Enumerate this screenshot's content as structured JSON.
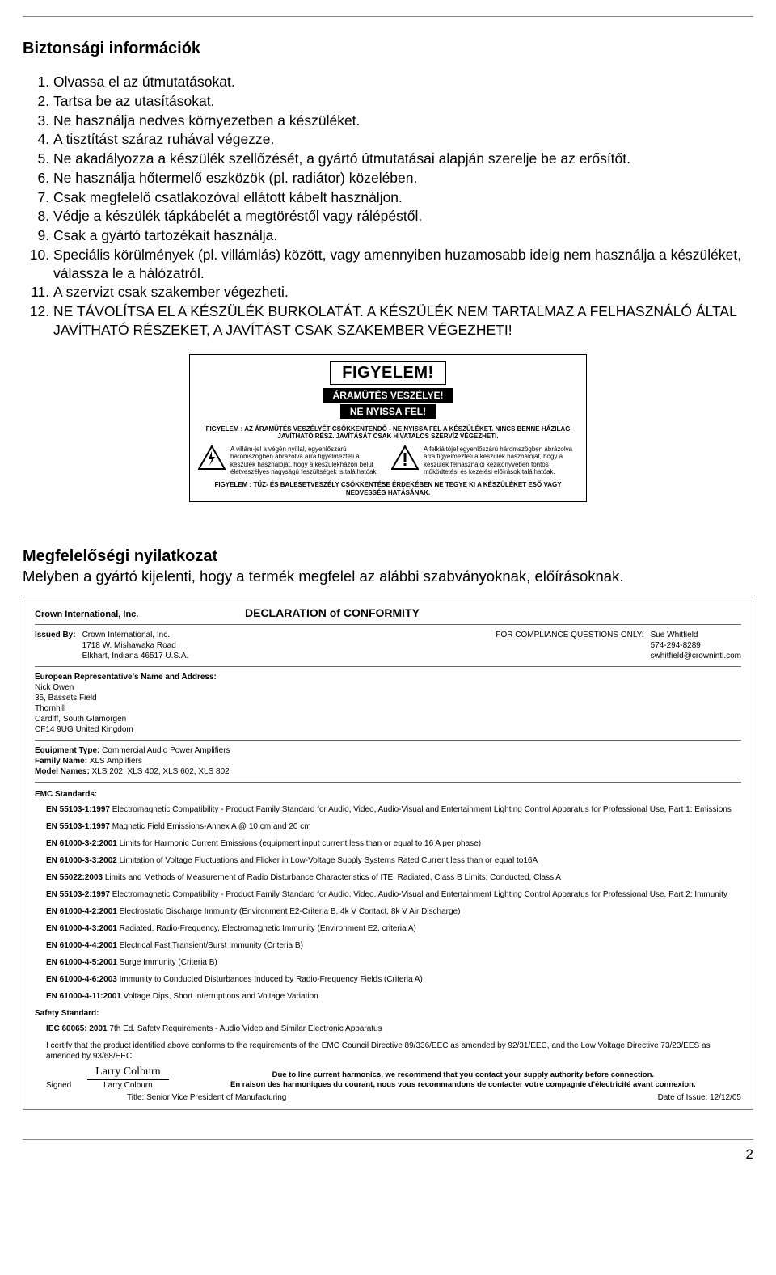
{
  "title": "Biztonsági információk",
  "safety_items": [
    "Olvassa el az útmutatásokat.",
    "Tartsa be az utasításokat.",
    "Ne használja nedves környezetben a készüléket.",
    "A tisztítást száraz ruhával végezze.",
    "Ne akadályozza a készülék szellőzését, a gyártó útmutatásai alapján szerelje be az erősítőt.",
    "Ne használja hőtermelő eszközök (pl. radiátor) közelében.",
    "Csak megfelelő csatlakozóval ellátott kábelt használjon.",
    "Védje a készülék tápkábelét a megtöréstől vagy rálépéstől.",
    "Csak a gyártó tartozékait használja.",
    "Speciális körülmények (pl. villámlás) között, vagy amennyiben huzamosabb ideig nem használja a készüléket, válassza le a hálózatról.",
    "A szervizt csak szakember végezheti.",
    "NE TÁVOLÍTSA EL A KÉSZÜLÉK BURKOLATÁT. A KÉSZÜLÉK NEM TARTALMAZ A FELHASZNÁLÓ ÁLTAL JAVÍTHATÓ RÉSZEKET, A JAVÍTÁST CSAK SZAKEMBER VÉGEZHETI!"
  ],
  "warning": {
    "figyelem": "FIGYELEM!",
    "line1": "ÁRAMÜTÉS VESZÉLYE!",
    "line2": "NE NYISSA FEL!",
    "header": "FIGYELEM : AZ ÁRAMÜTÉS VESZÉLYÉT CSÖKKENTENDŐ - NE NYISSA FEL A KÉSZÜLÉKET. NINCS BENNE HÁZILAG JAVÍTHATÓ RÉSZ. JAVÍTÁSÁT CSAK HIVATALOS SZERVÍZ VÉGEZHETI.",
    "col_left": "A villám-jel a végén nyíllal, egyenlőszárú háromszögben ábrázolva arra figyelmezteti a készülék használóját, hogy a készülékházon belül életveszélyes nagyságú feszültségek is találhatóak.",
    "col_right": "A felkiáltójel egyenlőszárú háromszögben ábrázolva arra figyelmezteti a készülék használóját, hogy a készülék felhasználói kézikönyvében fontos működtetési és kezelési előírások találhatóak.",
    "footer": "FIGYELEM : TŰZ- ÉS BALESETVESZÉLY CSÖKKENTÉSE ÉRDEKÉBEN NE TEGYE KI A KÉSZÜLÉKET ESŐ VAGY NEDVESSÉG HATÁSÁNAK."
  },
  "conformity": {
    "title": "Megfelelőségi nyilatkozat",
    "subtitle": "Melyben a gyártó kijelenti, hogy a termék megfelel az alábbi szabványoknak, előírásoknak."
  },
  "doc": {
    "company": "Crown International, Inc.",
    "doc_title": "DECLARATION of CONFORMITY",
    "issued_by_label": "Issued By:",
    "issued_by_lines": "Crown International, Inc.\n1718 W. Mishawaka Road\nElkhart, Indiana 46517 U.S.A.",
    "compliance_label": "FOR COMPLIANCE QUESTIONS ONLY:",
    "compliance_lines": "Sue Whitfield\n574-294-8289\nswhitfield@crownintl.com",
    "euro_label": "European Representative's Name and Address:",
    "euro_lines": "Nick Owen\n35, Bassets Field\nThornhill\nCardiff, South Glamorgen\nCF14 9UG United Kingdom",
    "equip_type_label": "Equipment Type:",
    "equip_type": "Commercial Audio Power Amplifiers",
    "family_label": "Family Name:",
    "family": "XLS Amplifiers",
    "model_label": "Model Names:",
    "models": "XLS 202, XLS 402, XLS 602, XLS 802",
    "emc_title": "EMC Standards:",
    "emc_items": [
      {
        "std": "EN 55103-1:1997",
        "txt": "Electromagnetic Compatibility - Product Family Standard for Audio, Video, Audio-Visual and Entertainment Lighting Control Apparatus for Professional Use, Part 1: Emissions"
      },
      {
        "std": "EN 55103-1:1997",
        "txt": "Magnetic Field Emissions-Annex A @ 10 cm and 20 cm"
      },
      {
        "std": "EN 61000-3-2:2001",
        "txt": "Limits for Harmonic Current Emissions (equipment input current less than or equal to 16 A per phase)"
      },
      {
        "std": "EN 61000-3-3:2002",
        "txt": "Limitation of Voltage Fluctuations and Flicker in Low-Voltage Supply Systems Rated Current less than or equal to16A"
      },
      {
        "std": "EN 55022:2003",
        "txt": "Limits and Methods of Measurement of Radio Disturbance Characteristics of ITE: Radiated, Class B Limits; Conducted, Class A"
      },
      {
        "std": "EN 55103-2:1997",
        "txt": "Electromagnetic Compatibility - Product Family Standard for Audio, Video, Audio-Visual and Entertainment Lighting Control Apparatus for Professional Use, Part 2: Immunity"
      },
      {
        "std": "EN 61000-4-2:2001",
        "txt": "Electrostatic Discharge Immunity (Environment E2-Criteria B, 4k V Contact, 8k V Air Discharge)"
      },
      {
        "std": "EN 61000-4-3:2001",
        "txt": "Radiated, Radio-Frequency, Electromagnetic Immunity (Environment E2, criteria A)"
      },
      {
        "std": "EN 61000-4-4:2001",
        "txt": "Electrical Fast Transient/Burst Immunity (Criteria B)"
      },
      {
        "std": "EN 61000-4-5:2001",
        "txt": "Surge Immunity (Criteria B)"
      },
      {
        "std": "EN 61000-4-6:2003",
        "txt": "Immunity to Conducted Disturbances Induced by Radio-Frequency Fields (Criteria A)"
      },
      {
        "std": "EN 61000-4-11:2001",
        "txt": "Voltage Dips, Short Interruptions and Voltage Variation"
      }
    ],
    "safety_title": "Safety Standard:",
    "safety_items": [
      {
        "std": "IEC 60065: 2001",
        "txt": "7th Ed. Safety Requirements - Audio Video and Similar Electronic Apparatus"
      }
    ],
    "cert_text": "I certify that the product identified above conforms to the requirements of the EMC Council Directive 89/336/EEC as amended by 92/31/EEC, and the Low Voltage Directive 73/23/EES as amended by 93/68/EEC.",
    "rec_line1": "Due to line current harmonics, we recommend that you contact your supply authority before connection.",
    "rec_line2": "En raison des harmoniques du courant, nous vous recommandons de contacter votre compagnie d'électricité avant connexion.",
    "signed_label": "Signed",
    "signature": "Larry Colburn",
    "signer_name": "Larry Colburn",
    "title_label": "Title:",
    "signer_title": "Senior Vice President of Manufacturing",
    "date_label": "Date of Issue:",
    "date": "12/12/05"
  },
  "page_number": "2"
}
